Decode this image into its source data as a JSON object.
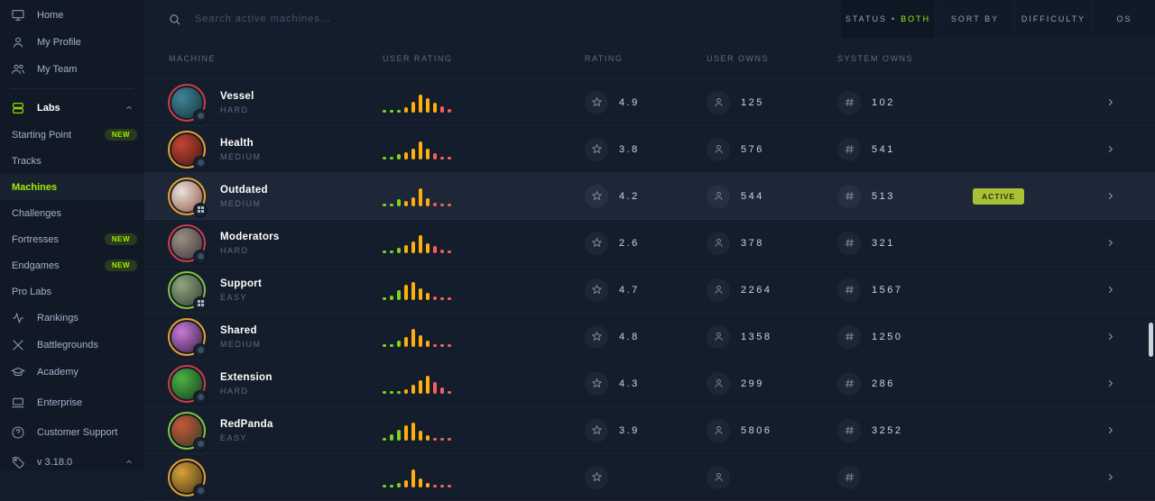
{
  "colors": {
    "accent": "#9fef00",
    "background": "#141d2b",
    "sidebar_background": "#111927",
    "hard_ring": "#d13b47",
    "medium_ring": "#e9a02c",
    "easy_ring": "#83c43f",
    "bar_green": "#7dd321",
    "bar_orange": "#ffae0c",
    "bar_red": "#f85e5e",
    "active_badge_bg": "#a9c235"
  },
  "sidebar": {
    "top": [
      {
        "label": "Home",
        "icon": "monitor-icon"
      },
      {
        "label": "My Profile",
        "icon": "user-icon"
      },
      {
        "label": "My Team",
        "icon": "users-icon"
      }
    ],
    "labs": {
      "label": "Labs",
      "icon": "layers-icon",
      "expanded": true
    },
    "labs_children": [
      {
        "label": "Starting Point",
        "badge": "NEW"
      },
      {
        "label": "Tracks"
      },
      {
        "label": "Machines",
        "active": true
      },
      {
        "label": "Challenges"
      },
      {
        "label": "Fortresses",
        "badge": "NEW"
      },
      {
        "label": "Endgames",
        "badge": "NEW"
      },
      {
        "label": "Pro Labs"
      }
    ],
    "bottom": [
      {
        "label": "Rankings",
        "icon": "activity-icon"
      },
      {
        "label": "Battlegrounds",
        "icon": "swords-icon"
      },
      {
        "label": "Academy",
        "icon": "graduation-cap-icon"
      },
      {
        "label": "Enterprise",
        "icon": "laptop-icon"
      },
      {
        "label": "Customer Support",
        "icon": "help-circle-icon"
      }
    ],
    "version": "v 3.18.0"
  },
  "topbar": {
    "search_placeholder": "Search active machines...",
    "status_label": "STATUS",
    "status_bullet": "•",
    "status_value": "BOTH",
    "sort_label": "SORT BY",
    "difficulty_label": "DIFFICULTY",
    "os_label": "OS"
  },
  "table": {
    "headers": [
      "MACHINE",
      "USER RATING",
      "RATING",
      "USER OWNS",
      "SYSTEM OWNS"
    ],
    "active_label": "ACTIVE",
    "rows": [
      {
        "name": "Vessel",
        "difficulty": "HARD",
        "diff": "hard",
        "os": "other",
        "rating": "4.9",
        "user_owns": "125",
        "system_owns": "102",
        "active": false,
        "avatar": [
          "#3f8496",
          "#132b36"
        ],
        "hist": [
          [
            3,
            "g"
          ],
          [
            3,
            "g"
          ],
          [
            3,
            "g"
          ],
          [
            6,
            "o"
          ],
          [
            12,
            "o"
          ],
          [
            20,
            "o"
          ],
          [
            16,
            "o"
          ],
          [
            11,
            "o"
          ],
          [
            7,
            "r"
          ],
          [
            4,
            "r"
          ]
        ]
      },
      {
        "name": "Health",
        "difficulty": "MEDIUM",
        "diff": "medium",
        "os": "other",
        "rating": "3.8",
        "user_owns": "576",
        "system_owns": "541",
        "active": false,
        "avatar": [
          "#c24532",
          "#3d1410"
        ],
        "hist": [
          [
            3,
            "g"
          ],
          [
            3,
            "g"
          ],
          [
            6,
            "g"
          ],
          [
            8,
            "o"
          ],
          [
            12,
            "o"
          ],
          [
            20,
            "o"
          ],
          [
            12,
            "o"
          ],
          [
            7,
            "r"
          ],
          [
            3,
            "r"
          ],
          [
            3,
            "r"
          ]
        ]
      },
      {
        "name": "Outdated",
        "difficulty": "MEDIUM",
        "diff": "medium",
        "os": "windows",
        "rating": "4.2",
        "user_owns": "544",
        "system_owns": "513",
        "active": true,
        "avatar": [
          "#e8e3da",
          "#8a4a3a"
        ],
        "hist": [
          [
            3,
            "g"
          ],
          [
            3,
            "g"
          ],
          [
            8,
            "g"
          ],
          [
            6,
            "o"
          ],
          [
            10,
            "o"
          ],
          [
            20,
            "o"
          ],
          [
            9,
            "o"
          ],
          [
            4,
            "r"
          ],
          [
            3,
            "r"
          ],
          [
            3,
            "r"
          ]
        ]
      },
      {
        "name": "Moderators",
        "difficulty": "HARD",
        "diff": "hard",
        "os": "other",
        "rating": "2.6",
        "user_owns": "378",
        "system_owns": "321",
        "active": false,
        "avatar": [
          "#9a8f85",
          "#3a2e35"
        ],
        "hist": [
          [
            3,
            "g"
          ],
          [
            3,
            "g"
          ],
          [
            6,
            "g"
          ],
          [
            9,
            "o"
          ],
          [
            13,
            "o"
          ],
          [
            20,
            "o"
          ],
          [
            11,
            "o"
          ],
          [
            8,
            "r"
          ],
          [
            4,
            "r"
          ],
          [
            3,
            "r"
          ]
        ]
      },
      {
        "name": "Support",
        "difficulty": "EASY",
        "diff": "easy",
        "os": "windows",
        "rating": "4.7",
        "user_owns": "2264",
        "system_owns": "1567",
        "active": false,
        "avatar": [
          "#8fa57f",
          "#2e3a2a"
        ],
        "hist": [
          [
            3,
            "g"
          ],
          [
            5,
            "g"
          ],
          [
            11,
            "g"
          ],
          [
            17,
            "o"
          ],
          [
            20,
            "o"
          ],
          [
            13,
            "o"
          ],
          [
            8,
            "o"
          ],
          [
            4,
            "r"
          ],
          [
            3,
            "r"
          ],
          [
            3,
            "r"
          ]
        ]
      },
      {
        "name": "Shared",
        "difficulty": "MEDIUM",
        "diff": "medium",
        "os": "other",
        "rating": "4.8",
        "user_owns": "1358",
        "system_owns": "1250",
        "active": false,
        "avatar": [
          "#c87ad8",
          "#2a1833"
        ],
        "hist": [
          [
            3,
            "g"
          ],
          [
            3,
            "g"
          ],
          [
            7,
            "g"
          ],
          [
            11,
            "o"
          ],
          [
            20,
            "o"
          ],
          [
            13,
            "o"
          ],
          [
            7,
            "o"
          ],
          [
            3,
            "r"
          ],
          [
            3,
            "r"
          ],
          [
            3,
            "r"
          ]
        ]
      },
      {
        "name": "Extension",
        "difficulty": "HARD",
        "diff": "hard",
        "os": "other",
        "rating": "4.3",
        "user_owns": "299",
        "system_owns": "286",
        "active": false,
        "avatar": [
          "#4db344",
          "#123318"
        ],
        "hist": [
          [
            3,
            "g"
          ],
          [
            3,
            "g"
          ],
          [
            3,
            "g"
          ],
          [
            5,
            "o"
          ],
          [
            10,
            "o"
          ],
          [
            15,
            "o"
          ],
          [
            20,
            "o"
          ],
          [
            13,
            "r"
          ],
          [
            7,
            "r"
          ],
          [
            3,
            "r"
          ]
        ]
      },
      {
        "name": "RedPanda",
        "difficulty": "EASY",
        "diff": "easy",
        "os": "other",
        "rating": "3.9",
        "user_owns": "5806",
        "system_owns": "3252",
        "active": false,
        "avatar": [
          "#c4573a",
          "#2d3a1f"
        ],
        "hist": [
          [
            3,
            "g"
          ],
          [
            7,
            "g"
          ],
          [
            12,
            "g"
          ],
          [
            17,
            "o"
          ],
          [
            20,
            "o"
          ],
          [
            11,
            "o"
          ],
          [
            6,
            "o"
          ],
          [
            3,
            "r"
          ],
          [
            3,
            "r"
          ],
          [
            3,
            "r"
          ]
        ]
      },
      {
        "name": "",
        "difficulty": "",
        "diff": "medium",
        "os": "other",
        "rating": "",
        "user_owns": "",
        "system_owns": "",
        "active": false,
        "avatar": [
          "#d8a23a",
          "#3a2a10"
        ],
        "hist": [
          [
            3,
            "g"
          ],
          [
            3,
            "g"
          ],
          [
            5,
            "g"
          ],
          [
            8,
            "o"
          ],
          [
            20,
            "o"
          ],
          [
            10,
            "o"
          ],
          [
            5,
            "o"
          ],
          [
            3,
            "r"
          ],
          [
            3,
            "r"
          ],
          [
            3,
            "r"
          ]
        ]
      }
    ]
  }
}
